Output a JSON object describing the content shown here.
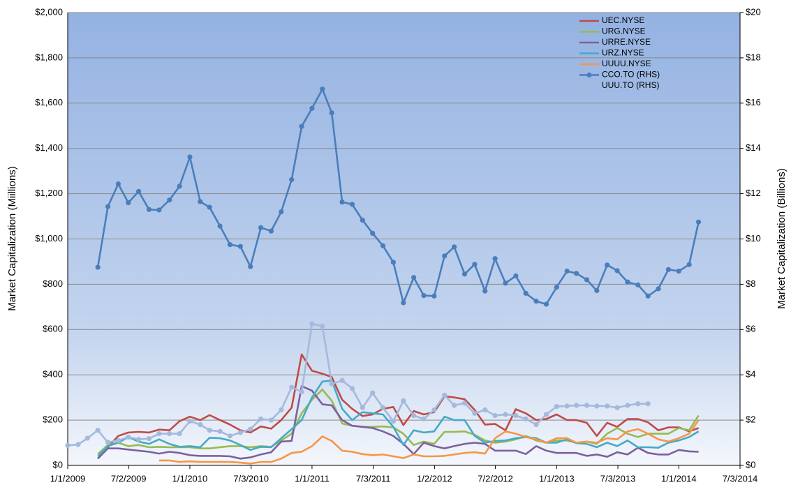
{
  "chart_data": {
    "type": "line",
    "ylabel": "Market Capitalization  (Miillions)",
    "y2label": "Market Capitalization  (Billions)",
    "x": [
      "1/1/2009",
      "2/1/2009",
      "3/1/2009",
      "4/1/2009",
      "5/1/2009",
      "6/1/2009",
      "7/1/2009",
      "8/1/2009",
      "9/1/2009",
      "10/1/2009",
      "11/1/2009",
      "12/1/2009",
      "1/1/2010",
      "2/1/2010",
      "3/1/2010",
      "4/1/2010",
      "5/1/2010",
      "6/1/2010",
      "7/1/2010",
      "8/1/2010",
      "9/1/2010",
      "10/1/2010",
      "11/1/2010",
      "12/1/2010",
      "1/1/2011",
      "2/1/2011",
      "3/1/2011",
      "4/1/2011",
      "5/1/2011",
      "6/1/2011",
      "7/1/2011",
      "8/1/2011",
      "9/1/2011",
      "10/1/2011",
      "11/1/2011",
      "12/1/2011",
      "1/1/2012",
      "2/1/2012",
      "3/1/2012",
      "4/1/2012",
      "5/1/2012",
      "6/1/2012",
      "7/1/2012",
      "8/1/2012",
      "9/1/2012",
      "10/1/2012",
      "11/1/2012",
      "12/1/2012",
      "1/1/2013",
      "2/1/2013",
      "3/1/2013",
      "4/1/2013",
      "5/1/2013",
      "6/1/2013",
      "7/1/2013",
      "8/1/2013",
      "9/1/2013",
      "10/1/2013",
      "11/1/2013",
      "12/1/2013",
      "1/1/2014",
      "2/1/2014",
      "3/1/2014"
    ],
    "xlim": [
      "1/1/2009",
      "7/3/2014"
    ],
    "xticks": [
      "1/1/2009",
      "7/2/2009",
      "1/1/2010",
      "7/3/2010",
      "1/1/2011",
      "7/3/2011",
      "1/2/2012",
      "7/2/2012",
      "1/1/2013",
      "7/3/2013",
      "1/1/2014",
      "7/3/2014"
    ],
    "ylim": [
      0,
      2000
    ],
    "yticks": [
      {
        "value": 0,
        "label": "$0"
      },
      {
        "value": 200,
        "label": "$200"
      },
      {
        "value": 400,
        "label": "$400"
      },
      {
        "value": 600,
        "label": "$600"
      },
      {
        "value": 800,
        "label": "$800"
      },
      {
        "value": 1000,
        "label": "$1,000"
      },
      {
        "value": 1200,
        "label": "$1,200"
      },
      {
        "value": 1400,
        "label": "$1,400"
      },
      {
        "value": 1600,
        "label": "$1,600"
      },
      {
        "value": 1800,
        "label": "$1,800"
      },
      {
        "value": 2000,
        "label": "$2,000"
      }
    ],
    "y2lim": [
      0,
      20
    ],
    "y2ticks": [
      {
        "value": 0,
        "label": "$0"
      },
      {
        "value": 2,
        "label": "$2"
      },
      {
        "value": 4,
        "label": "$4"
      },
      {
        "value": 6,
        "label": "$6"
      },
      {
        "value": 8,
        "label": "$8"
      },
      {
        "value": 10,
        "label": "$10"
      },
      {
        "value": 12,
        "label": "$12"
      },
      {
        "value": 14,
        "label": "$14"
      },
      {
        "value": 16,
        "label": "$16"
      },
      {
        "value": 18,
        "label": "$18"
      },
      {
        "value": 20,
        "label": "$20"
      }
    ],
    "grid": true,
    "legend": "upper right",
    "series": [
      {
        "name": "UEC.NYSE",
        "color": "#be4b48",
        "marker": false,
        "values": [
          null,
          null,
          null,
          30,
          80,
          130,
          145,
          148,
          145,
          158,
          155,
          195,
          215,
          200,
          222,
          200,
          180,
          155,
          145,
          172,
          162,
          200,
          255,
          490,
          418,
          405,
          390,
          290,
          250,
          218,
          225,
          250,
          258,
          178,
          240,
          225,
          235,
          305,
          300,
          292,
          245,
          180,
          183,
          155,
          248,
          230,
          200,
          205,
          225,
          200,
          200,
          188,
          130,
          188,
          170,
          205,
          205,
          190,
          155,
          168,
          168,
          150,
          165
        ]
      },
      {
        "name": "URG.NYSE",
        "color": "#98b954",
        "marker": false,
        "values": [
          null,
          null,
          null,
          50,
          90,
          100,
          85,
          90,
          80,
          82,
          80,
          80,
          80,
          75,
          75,
          80,
          85,
          85,
          80,
          85,
          82,
          110,
          140,
          230,
          290,
          335,
          285,
          185,
          175,
          170,
          170,
          172,
          168,
          140,
          90,
          105,
          95,
          148,
          148,
          150,
          135,
          110,
          100,
          105,
          115,
          130,
          110,
          100,
          110,
          110,
          100,
          105,
          95,
          140,
          165,
          140,
          125,
          140,
          140,
          140,
          165,
          155,
          220
        ]
      },
      {
        "name": "URRE.NYSE",
        "color": "#7d60a0",
        "marker": false,
        "values": [
          null,
          null,
          null,
          30,
          75,
          75,
          70,
          65,
          60,
          52,
          60,
          55,
          45,
          42,
          42,
          42,
          40,
          30,
          35,
          48,
          58,
          105,
          108,
          350,
          330,
          270,
          265,
          200,
          175,
          170,
          165,
          150,
          130,
          95,
          50,
          100,
          85,
          75,
          85,
          95,
          100,
          95,
          65,
          65,
          65,
          50,
          85,
          65,
          55,
          55,
          55,
          42,
          48,
          38,
          58,
          48,
          78,
          55,
          48,
          48,
          68,
          62,
          60
        ]
      },
      {
        "name": "URZ.NYSE",
        "color": "#46aac5",
        "marker": false,
        "values": [
          null,
          null,
          null,
          40,
          85,
          100,
          125,
          105,
          95,
          115,
          95,
          82,
          85,
          80,
          122,
          120,
          110,
          90,
          68,
          82,
          80,
          120,
          160,
          200,
          300,
          370,
          375,
          250,
          200,
          235,
          230,
          225,
          170,
          90,
          155,
          145,
          150,
          215,
          200,
          200,
          130,
          100,
          108,
          110,
          120,
          125,
          120,
          100,
          100,
          115,
          98,
          95,
          80,
          100,
          85,
          110,
          80,
          80,
          78,
          100,
          110,
          125,
          150
        ]
      },
      {
        "name": "UUUU.NYSE",
        "color": "#f79646",
        "marker": false,
        "values": [
          null,
          null,
          null,
          null,
          null,
          null,
          null,
          null,
          null,
          22,
          22,
          15,
          18,
          15,
          15,
          15,
          15,
          12,
          8,
          15,
          15,
          30,
          55,
          60,
          85,
          128,
          108,
          65,
          60,
          50,
          45,
          48,
          40,
          32,
          48,
          40,
          40,
          42,
          48,
          55,
          58,
          52,
          120,
          150,
          140,
          125,
          115,
          100,
          120,
          120,
          100,
          105,
          100,
          120,
          115,
          150,
          160,
          140,
          115,
          105,
          120,
          140,
          200
        ]
      },
      {
        "name": "CCO.TO (RHS)",
        "color": "#4a7ebb",
        "marker": true,
        "axis": "y2",
        "values": [
          null,
          null,
          null,
          8.75,
          11.43,
          12.43,
          11.6,
          12.1,
          11.3,
          11.28,
          11.72,
          12.33,
          13.62,
          11.65,
          11.4,
          10.57,
          9.75,
          9.67,
          8.78,
          10.5,
          10.35,
          11.2,
          12.62,
          14.97,
          15.77,
          16.62,
          15.57,
          11.63,
          11.53,
          10.83,
          10.25,
          9.7,
          8.97,
          7.18,
          8.3,
          7.5,
          7.48,
          9.25,
          9.65,
          8.45,
          8.88,
          7.7,
          9.13,
          8.05,
          8.37,
          7.6,
          7.25,
          7.12,
          7.87,
          8.58,
          8.48,
          8.2,
          7.72,
          8.85,
          8.6,
          8.1,
          7.97,
          7.48,
          7.8,
          8.65,
          8.58,
          8.87,
          10.75
        ]
      },
      {
        "name": "UUU.TO (RHS)",
        "color": "#a5b9dc",
        "marker": true,
        "axis": "y2",
        "values": [
          0.88,
          0.92,
          1.2,
          1.55,
          1.02,
          1.1,
          1.25,
          1.15,
          1.18,
          1.4,
          1.4,
          1.4,
          1.95,
          1.8,
          1.55,
          1.5,
          1.3,
          1.45,
          1.6,
          2.05,
          2.0,
          2.45,
          3.45,
          3.25,
          6.25,
          6.15,
          3.6,
          3.75,
          3.4,
          2.55,
          3.2,
          2.55,
          1.95,
          2.85,
          2.2,
          2.05,
          2.45,
          3.1,
          2.65,
          2.75,
          2.3,
          2.45,
          2.2,
          2.25,
          2.2,
          2.05,
          1.8,
          2.25,
          2.6,
          2.62,
          2.65,
          2.65,
          2.62,
          2.62,
          2.55,
          2.65,
          2.72,
          2.72,
          null,
          null,
          null,
          null,
          null
        ]
      }
    ]
  }
}
